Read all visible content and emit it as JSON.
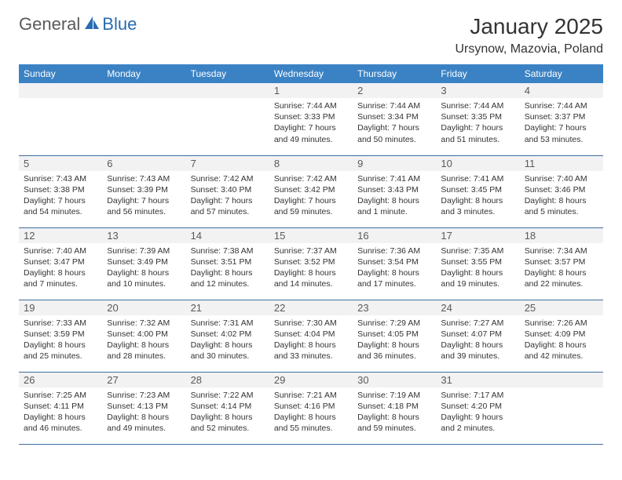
{
  "logo": {
    "text1": "General",
    "text2": "Blue"
  },
  "title": "January 2025",
  "location": "Ursynow, Mazovia, Poland",
  "colors": {
    "header_bg": "#3b82c4",
    "header_text": "#ffffff",
    "daynum_bg": "#f2f2f2",
    "daynum_text": "#5a5a5a",
    "body_text": "#333333",
    "row_border": "#3b6fa0",
    "logo_gray": "#5a5a5a",
    "logo_blue": "#2a6cb0"
  },
  "weekdays": [
    "Sunday",
    "Monday",
    "Tuesday",
    "Wednesday",
    "Thursday",
    "Friday",
    "Saturday"
  ],
  "weeks": [
    [
      {
        "n": "",
        "lines": []
      },
      {
        "n": "",
        "lines": []
      },
      {
        "n": "",
        "lines": []
      },
      {
        "n": "1",
        "lines": [
          "Sunrise: 7:44 AM",
          "Sunset: 3:33 PM",
          "Daylight: 7 hours",
          "and 49 minutes."
        ]
      },
      {
        "n": "2",
        "lines": [
          "Sunrise: 7:44 AM",
          "Sunset: 3:34 PM",
          "Daylight: 7 hours",
          "and 50 minutes."
        ]
      },
      {
        "n": "3",
        "lines": [
          "Sunrise: 7:44 AM",
          "Sunset: 3:35 PM",
          "Daylight: 7 hours",
          "and 51 minutes."
        ]
      },
      {
        "n": "4",
        "lines": [
          "Sunrise: 7:44 AM",
          "Sunset: 3:37 PM",
          "Daylight: 7 hours",
          "and 53 minutes."
        ]
      }
    ],
    [
      {
        "n": "5",
        "lines": [
          "Sunrise: 7:43 AM",
          "Sunset: 3:38 PM",
          "Daylight: 7 hours",
          "and 54 minutes."
        ]
      },
      {
        "n": "6",
        "lines": [
          "Sunrise: 7:43 AM",
          "Sunset: 3:39 PM",
          "Daylight: 7 hours",
          "and 56 minutes."
        ]
      },
      {
        "n": "7",
        "lines": [
          "Sunrise: 7:42 AM",
          "Sunset: 3:40 PM",
          "Daylight: 7 hours",
          "and 57 minutes."
        ]
      },
      {
        "n": "8",
        "lines": [
          "Sunrise: 7:42 AM",
          "Sunset: 3:42 PM",
          "Daylight: 7 hours",
          "and 59 minutes."
        ]
      },
      {
        "n": "9",
        "lines": [
          "Sunrise: 7:41 AM",
          "Sunset: 3:43 PM",
          "Daylight: 8 hours",
          "and 1 minute."
        ]
      },
      {
        "n": "10",
        "lines": [
          "Sunrise: 7:41 AM",
          "Sunset: 3:45 PM",
          "Daylight: 8 hours",
          "and 3 minutes."
        ]
      },
      {
        "n": "11",
        "lines": [
          "Sunrise: 7:40 AM",
          "Sunset: 3:46 PM",
          "Daylight: 8 hours",
          "and 5 minutes."
        ]
      }
    ],
    [
      {
        "n": "12",
        "lines": [
          "Sunrise: 7:40 AM",
          "Sunset: 3:47 PM",
          "Daylight: 8 hours",
          "and 7 minutes."
        ]
      },
      {
        "n": "13",
        "lines": [
          "Sunrise: 7:39 AM",
          "Sunset: 3:49 PM",
          "Daylight: 8 hours",
          "and 10 minutes."
        ]
      },
      {
        "n": "14",
        "lines": [
          "Sunrise: 7:38 AM",
          "Sunset: 3:51 PM",
          "Daylight: 8 hours",
          "and 12 minutes."
        ]
      },
      {
        "n": "15",
        "lines": [
          "Sunrise: 7:37 AM",
          "Sunset: 3:52 PM",
          "Daylight: 8 hours",
          "and 14 minutes."
        ]
      },
      {
        "n": "16",
        "lines": [
          "Sunrise: 7:36 AM",
          "Sunset: 3:54 PM",
          "Daylight: 8 hours",
          "and 17 minutes."
        ]
      },
      {
        "n": "17",
        "lines": [
          "Sunrise: 7:35 AM",
          "Sunset: 3:55 PM",
          "Daylight: 8 hours",
          "and 19 minutes."
        ]
      },
      {
        "n": "18",
        "lines": [
          "Sunrise: 7:34 AM",
          "Sunset: 3:57 PM",
          "Daylight: 8 hours",
          "and 22 minutes."
        ]
      }
    ],
    [
      {
        "n": "19",
        "lines": [
          "Sunrise: 7:33 AM",
          "Sunset: 3:59 PM",
          "Daylight: 8 hours",
          "and 25 minutes."
        ]
      },
      {
        "n": "20",
        "lines": [
          "Sunrise: 7:32 AM",
          "Sunset: 4:00 PM",
          "Daylight: 8 hours",
          "and 28 minutes."
        ]
      },
      {
        "n": "21",
        "lines": [
          "Sunrise: 7:31 AM",
          "Sunset: 4:02 PM",
          "Daylight: 8 hours",
          "and 30 minutes."
        ]
      },
      {
        "n": "22",
        "lines": [
          "Sunrise: 7:30 AM",
          "Sunset: 4:04 PM",
          "Daylight: 8 hours",
          "and 33 minutes."
        ]
      },
      {
        "n": "23",
        "lines": [
          "Sunrise: 7:29 AM",
          "Sunset: 4:05 PM",
          "Daylight: 8 hours",
          "and 36 minutes."
        ]
      },
      {
        "n": "24",
        "lines": [
          "Sunrise: 7:27 AM",
          "Sunset: 4:07 PM",
          "Daylight: 8 hours",
          "and 39 minutes."
        ]
      },
      {
        "n": "25",
        "lines": [
          "Sunrise: 7:26 AM",
          "Sunset: 4:09 PM",
          "Daylight: 8 hours",
          "and 42 minutes."
        ]
      }
    ],
    [
      {
        "n": "26",
        "lines": [
          "Sunrise: 7:25 AM",
          "Sunset: 4:11 PM",
          "Daylight: 8 hours",
          "and 46 minutes."
        ]
      },
      {
        "n": "27",
        "lines": [
          "Sunrise: 7:23 AM",
          "Sunset: 4:13 PM",
          "Daylight: 8 hours",
          "and 49 minutes."
        ]
      },
      {
        "n": "28",
        "lines": [
          "Sunrise: 7:22 AM",
          "Sunset: 4:14 PM",
          "Daylight: 8 hours",
          "and 52 minutes."
        ]
      },
      {
        "n": "29",
        "lines": [
          "Sunrise: 7:21 AM",
          "Sunset: 4:16 PM",
          "Daylight: 8 hours",
          "and 55 minutes."
        ]
      },
      {
        "n": "30",
        "lines": [
          "Sunrise: 7:19 AM",
          "Sunset: 4:18 PM",
          "Daylight: 8 hours",
          "and 59 minutes."
        ]
      },
      {
        "n": "31",
        "lines": [
          "Sunrise: 7:17 AM",
          "Sunset: 4:20 PM",
          "Daylight: 9 hours",
          "and 2 minutes."
        ]
      },
      {
        "n": "",
        "lines": []
      }
    ]
  ]
}
